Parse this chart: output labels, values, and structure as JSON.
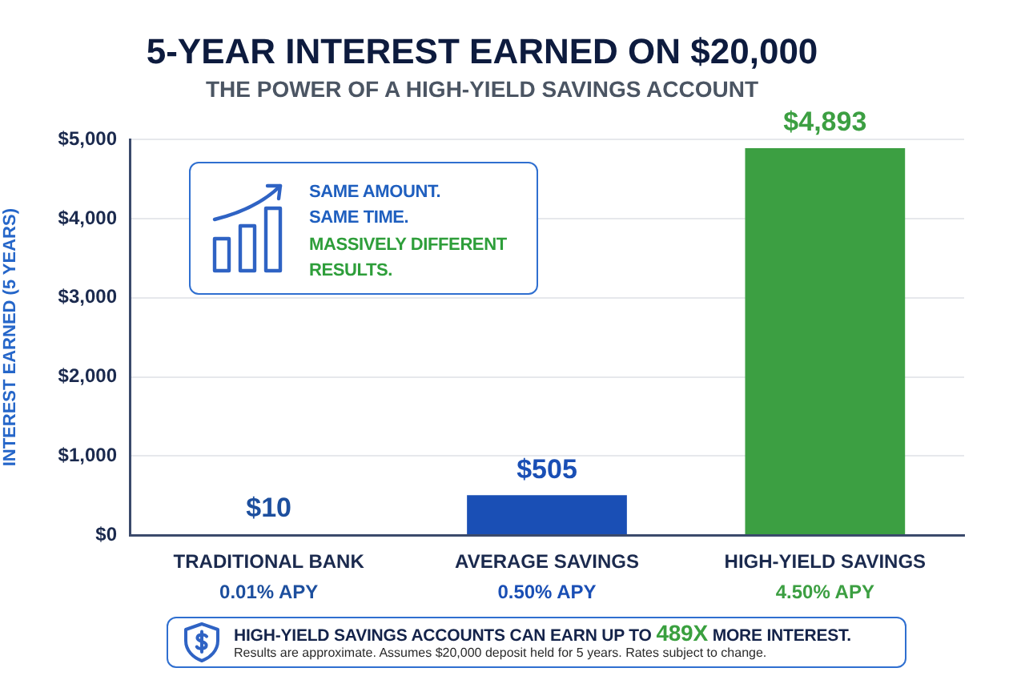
{
  "chart_data": {
    "type": "bar",
    "title": "5-YEAR INTEREST EARNED ON $20,000",
    "subtitle": "THE POWER OF A HIGH-YIELD SAVINGS ACCOUNT",
    "ylabel": "INTEREST EARNED (5 YEARS)",
    "categories": [
      "TRADITIONAL BANK\n0.01% APY",
      "AVERAGE SAVINGS\n0.50% APY",
      "HIGH-YIELD SAVINGS\n4.50% APY"
    ],
    "values": [
      10,
      505,
      4893
    ],
    "colors": [
      "#1d4f9e",
      "#1a4fb5",
      "#3c9f42"
    ],
    "value_labels": [
      "$10",
      "$505",
      "$4,893"
    ],
    "ylim": [
      0,
      5000
    ],
    "yticks": [
      {
        "value": 0,
        "label": "$0"
      },
      {
        "value": 1000,
        "label": "$1,000"
      },
      {
        "value": 2000,
        "label": "$2,000"
      },
      {
        "value": 3000,
        "label": "$3,000"
      },
      {
        "value": 4000,
        "label": "$4,000"
      },
      {
        "value": 5000,
        "label": "$5,000"
      }
    ],
    "grid": "y",
    "annotations": [
      "SAME AMOUNT.",
      "SAME TIME.",
      "MASSIVELY DIFFERENT RESULTS.",
      "HIGH-YIELD SAVINGS ACCOUNTS CAN EARN UP TO",
      "489X",
      "MORE INTEREST.",
      "Results are approximate. Assumes $20,000 deposit held for 5 years. Rates subject to change."
    ]
  }
}
